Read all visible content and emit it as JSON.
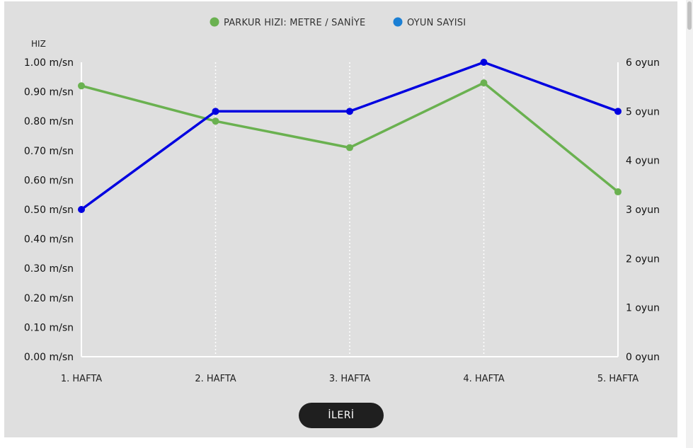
{
  "chart_data": {
    "type": "line",
    "categories": [
      "1. HAFTA",
      "2. HAFTA",
      "3. HAFTA",
      "4. HAFTA",
      "5. HAFTA"
    ],
    "series": [
      {
        "name": "PARKUR HIZI: METRE / SANİYE",
        "axis": "left",
        "color": "#6ab150",
        "values": [
          0.92,
          0.8,
          0.71,
          0.93,
          0.56
        ]
      },
      {
        "name": "OYUN SAYISI",
        "axis": "right",
        "color": "#0000e0",
        "legend_color": "#1a7fd4",
        "values": [
          3,
          5,
          5,
          6,
          5
        ]
      }
    ],
    "ylabel_left": "HIZ",
    "ylim_left": [
      0,
      1
    ],
    "yticks_left": [
      "0.00 m/sn",
      "0.10 m/sn",
      "0.20 m/sn",
      "0.30 m/sn",
      "0.40 m/sn",
      "0.50 m/sn",
      "0.60 m/sn",
      "0.70 m/sn",
      "0.80 m/sn",
      "0.90 m/sn",
      "1.00 m/sn"
    ],
    "ylim_right": [
      0,
      6
    ],
    "yticks_right": [
      "0 oyun",
      "1 oyun",
      "2 oyun",
      "3 oyun",
      "4 oyun",
      "5 oyun",
      "6 oyun"
    ],
    "legend_position": "top-center",
    "grid": "vertical-dotted"
  },
  "controls": {
    "next_label": "İLERİ"
  }
}
